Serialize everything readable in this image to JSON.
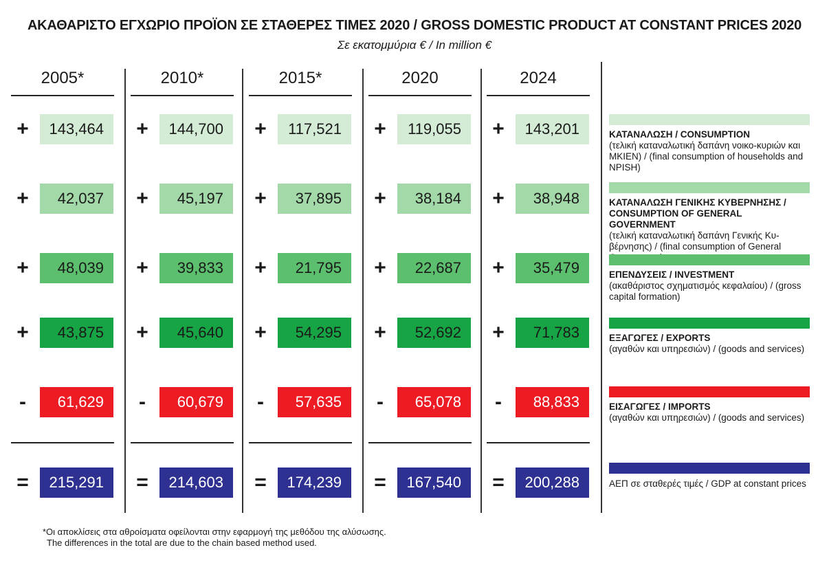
{
  "title": "ΑΚΑΘΑΡΙΣΤΟ ΕΓΧΩΡΙΟ ΠΡΟΪΟΝ ΣΕ ΣΤΑΘΕΡΕΣ ΤΙΜΕΣ 2020 / GROSS DOMESTIC PRODUCT AT CONSTANT PRICES 2020",
  "subtitle": "Σε εκατομμύρια € / In million €",
  "footnote": {
    "line1": "*Οι αποκλίσεις στα αθροίσματα οφείλονται στην εφαρμογή της μεθόδου της αλύσωσης.",
    "line2": "The differences in the total are due to the chain based method used."
  },
  "chart_data": {
    "type": "table",
    "title": "ΑΚΑΘΑΡΙΣΤΟ ΕΓΧΩΡΙΟ ΠΡΟΪΟΝ ΣΕ ΣΤΑΘΕΡΕΣ ΤΙΜΕΣ 2020 / GROSS DOMESTIC PRODUCT AT CONSTANT PRICES 2020",
    "unit": "Σε εκατομμύρια € / In million €",
    "years": [
      "2005*",
      "2010*",
      "2015*",
      "2020",
      "2024"
    ],
    "rows": [
      {
        "operator": "+",
        "color": "#d4ecd6",
        "text_color": "#1a1a1a",
        "legend_title": "ΚΑΤΑΝΑΛΩΣΗ / CONSUMPTION",
        "legend_desc": "(τελική καταναλωτική δαπάνη νοικο-κυριών και ΜΚΙΕΝ) / (final consumption of households and NPISH)",
        "values": [
          "143,464",
          "144,700",
          "117,521",
          "119,055",
          "143,201"
        ]
      },
      {
        "operator": "+",
        "color": "#a3d8a8",
        "text_color": "#1a1a1a",
        "legend_title": "ΚΑΤΑΝΑΛΩΣΗ ΓΕΝΙΚΗΣ ΚΥΒΕΡΝΗΣΗΣ / CONSUMPTION OF GENERAL GOVERNMENT",
        "legend_desc": "(τελική καταναλωτική δαπάνη Γενικής Κυ-βέρνησης) / (final consumption of General Government)",
        "values": [
          "42,037",
          "45,197",
          "37,895",
          "38,184",
          "38,948"
        ]
      },
      {
        "operator": "+",
        "color": "#5cbf6e",
        "text_color": "#1a1a1a",
        "legend_title": "ΕΠΕΝΔΥΣΕΙΣ / INVESTMENT",
        "legend_desc": "(ακαθάριστος σχηματισμός κεφαλαίου) / (gross capital formation)",
        "values": [
          "48,039",
          "39,833",
          "21,795",
          "22,687",
          "35,479"
        ]
      },
      {
        "operator": "+",
        "color": "#17a444",
        "text_color": "#1a1a1a",
        "legend_title": "ΕΞΑΓΩΓΕΣ / EXPORTS",
        "legend_desc": "(αγαθών και υπηρεσιών) / (goods and services)",
        "values": [
          "43,875",
          "45,640",
          "54,295",
          "52,692",
          "71,783"
        ]
      },
      {
        "operator": "-",
        "color": "#ed1c24",
        "text_color": "#ffffff",
        "legend_title": "ΕΙΣΑΓΩΓΕΣ / IMPORTS",
        "legend_desc": "(αγαθών και υπηρεσιών) / (goods and services)",
        "values": [
          "61,629",
          "60,679",
          "57,635",
          "65,078",
          "88,833"
        ]
      },
      {
        "operator": "=",
        "color": "#2e3192",
        "text_color": "#ffffff",
        "legend_title": "",
        "legend_desc": "ΑΕΠ σε σταθερές τιμές / GDP at constant prices",
        "values": [
          "215,291",
          "214,603",
          "174,239",
          "167,540",
          "200,288"
        ]
      }
    ]
  }
}
